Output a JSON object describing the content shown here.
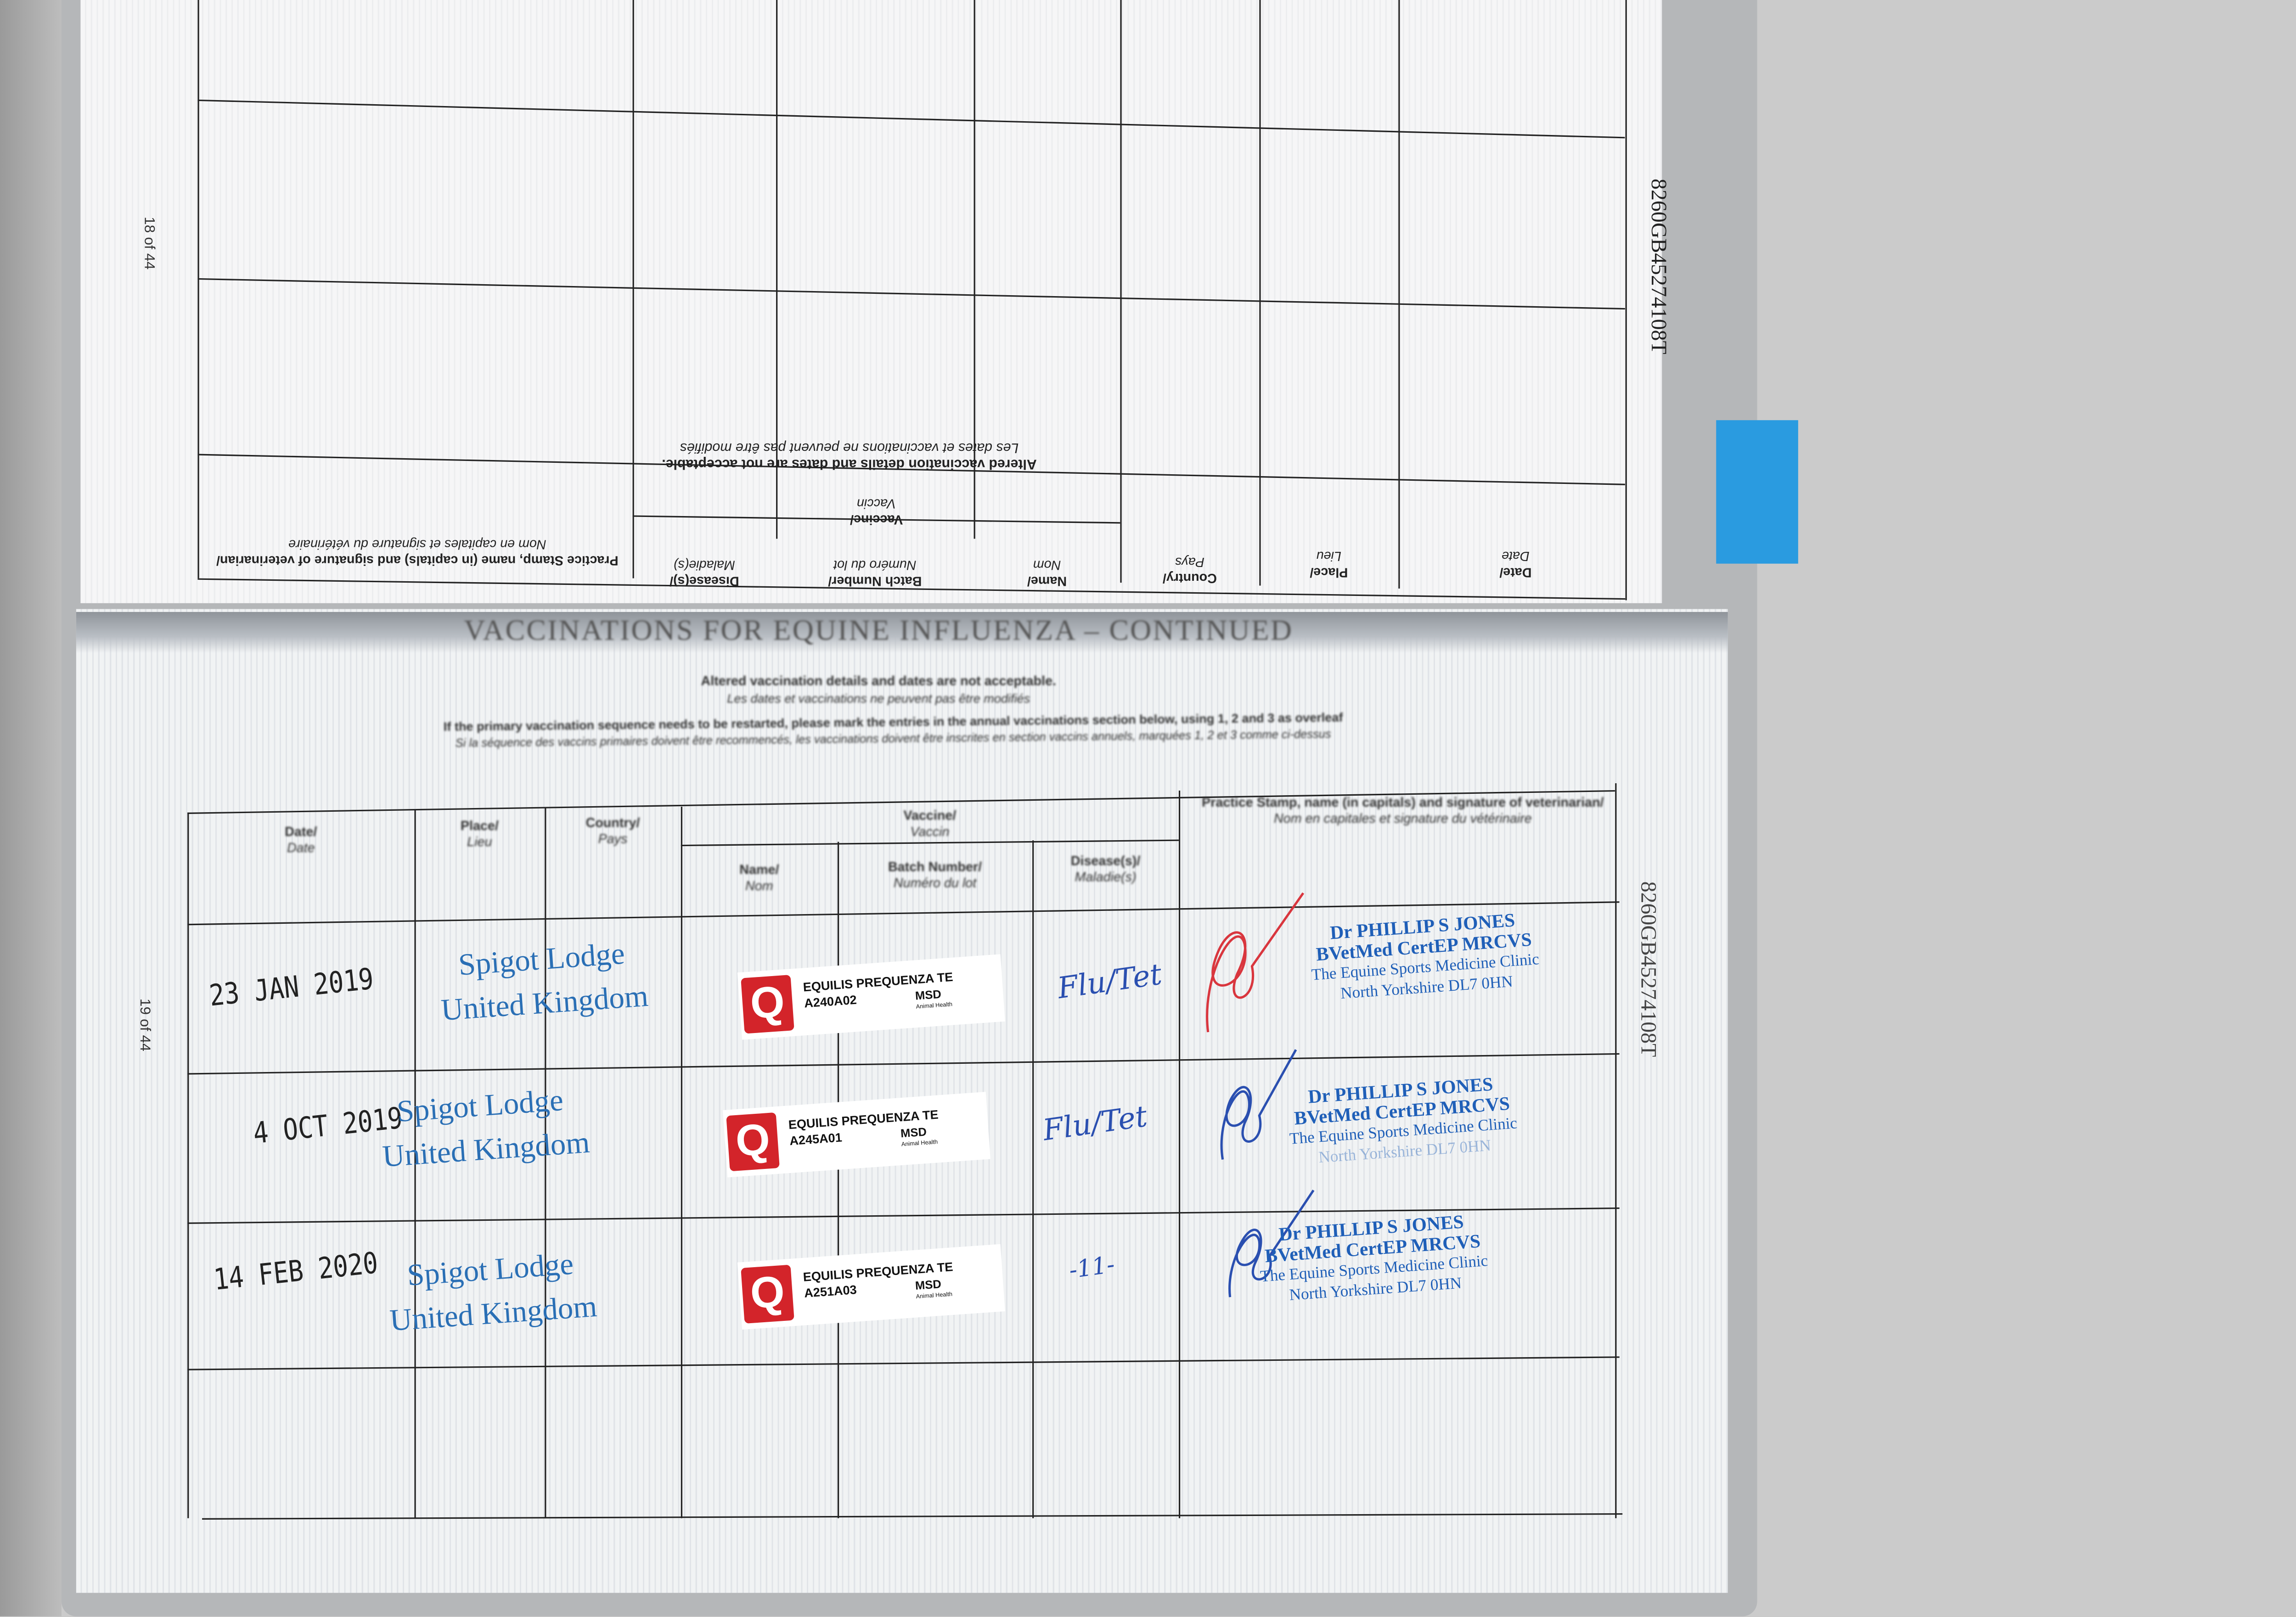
{
  "passport_id": "8260GB45274108T",
  "top_page": {
    "page_number": "18 of 44",
    "notice_en": "Altered vaccination details and dates are not acceptable.",
    "notice_fr": "Les dates et vaccinations ne peuvent pas être modifiés",
    "headers": {
      "date": "Date/",
      "date_fr": "Date",
      "place": "Place/",
      "place_fr": "Lieu",
      "country": "Country/",
      "country_fr": "Pays",
      "vaccine": "Vaccine/",
      "vaccine_fr": "Vaccin",
      "name": "Name/",
      "name_fr": "Nom",
      "batch": "Batch Number/",
      "batch_fr": "Numéro du lot",
      "disease": "Disease(s)/",
      "disease_fr": "Maladie(s)",
      "stamp": "Practice Stamp, name (in capitals) and signature of veterinarian/",
      "stamp_fr": "Nom en capitales et signature du vétérinaire"
    }
  },
  "bottom_page": {
    "page_number": "19 of 44",
    "title": "VACCINATIONS FOR EQUINE INFLUENZA – CONTINUED",
    "notice_en": "Altered vaccination details and dates are not acceptable.",
    "notice_fr": "Les dates et vaccinations ne peuvent pas être modifiés",
    "restart_en": "If the primary vaccination sequence needs to be restarted, please mark the entries in the annual vaccinations section below, using 1, 2 and 3 as overleaf",
    "restart_fr": "Si la séquence des vaccins primaires doivent être recommencés, les vaccinations doivent être inscrites en section vaccins annuels, marquées 1, 2 et 3 comme ci-dessus",
    "headers": {
      "date": "Date/",
      "date_fr": "Date",
      "place": "Place/",
      "place_fr": "Lieu",
      "country": "Country/",
      "country_fr": "Pays",
      "vaccine": "Vaccine/",
      "vaccine_fr": "Vaccin",
      "name": "Name/",
      "name_fr": "Nom",
      "batch": "Batch Number/",
      "batch_fr": "Numéro du lot",
      "disease": "Disease(s)/",
      "disease_fr": "Maladie(s)",
      "stamp": "Practice Stamp, name (in capitals) and signature of veterinarian/",
      "stamp_fr": "Nom en capitales et signature du vétérinaire"
    },
    "entries": [
      {
        "date": "23 JAN 2019",
        "place": "Spigot Lodge",
        "country": "United Kingdom",
        "vaccine": "EQUILIS PREQUENZA TE",
        "batch": "A240A02",
        "disease": "Flu/Tet",
        "signature_color": "#d9363e"
      },
      {
        "date": "4 OCT 2019",
        "place": "Spigot Lodge",
        "country": "United Kingdom",
        "vaccine": "EQUILIS PREQUENZA TE",
        "batch": "A245A01",
        "disease": "Flu/Tet",
        "signature_color": "#2a4fb0"
      },
      {
        "date": "14 FEB 2020",
        "place": "Spigot Lodge",
        "country": "United Kingdom",
        "vaccine": "EQUILIS PREQUENZA TE",
        "batch": "A251A03",
        "disease": "-11-",
        "signature_color": "#2a4fb0"
      }
    ],
    "stamp": {
      "name": "Dr PHILLIP S JONES",
      "quals": "BVetMed CertEP MRCVS",
      "clinic": "The Equine Sports Medicine Clinic",
      "address": "North Yorkshire   DL7 0HN"
    },
    "sticker": {
      "logo_letter": "Q",
      "brand": "MSD",
      "brand_sub": "Animal Health",
      "logo_color": "#d3242a"
    }
  },
  "colors": {
    "tab": "#2a9be0",
    "stamp_ink": "#1f5fb8"
  }
}
